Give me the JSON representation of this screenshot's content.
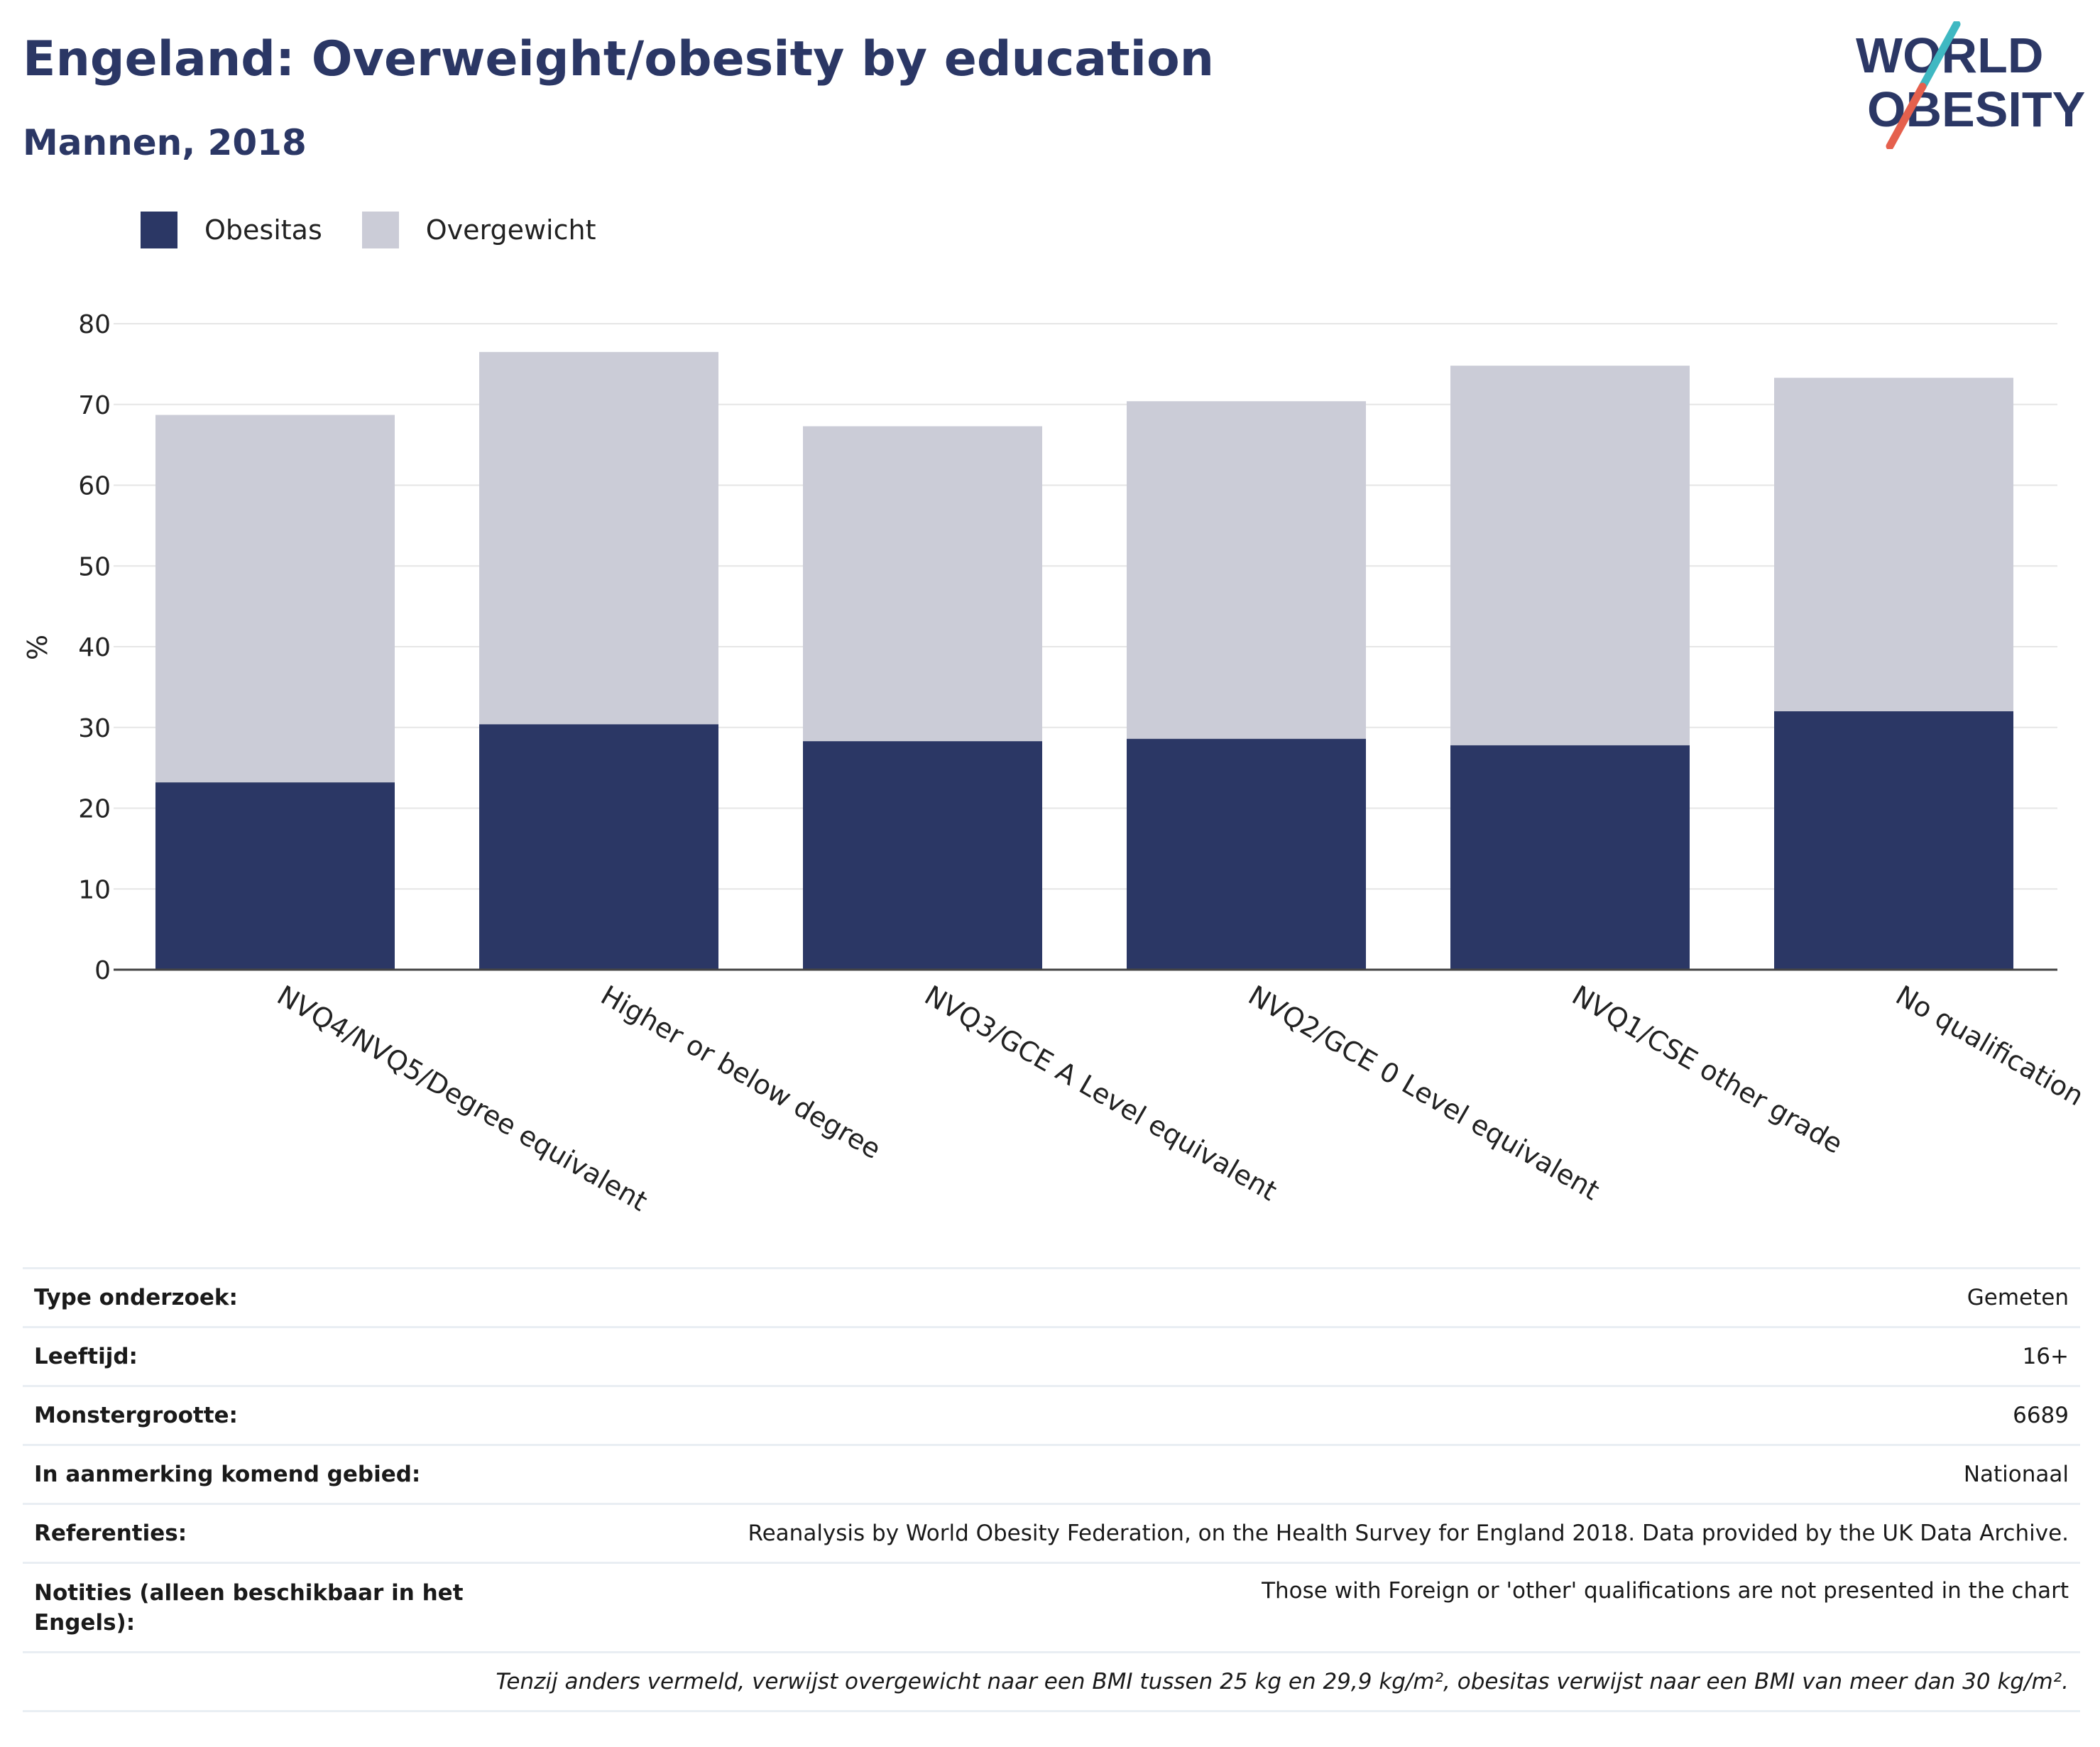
{
  "header": {
    "title": "Engeland: Overweight/obesity by education",
    "subtitle": "Mannen, 2018"
  },
  "logo": {
    "line1": "WORLD",
    "line2": "OBESITY",
    "colors": {
      "text": "#2b3765",
      "slash_top": "#3fb8c2",
      "slash_bottom": "#e5604d"
    }
  },
  "colors": {
    "obesitas": "#2b3765",
    "overgewicht": "#cbccd7",
    "gridline": "#e6e6e6",
    "axis": "#444444"
  },
  "chart_data": {
    "type": "bar",
    "stacked": true,
    "title": "",
    "xlabel": "",
    "ylabel": "%",
    "ylim": [
      0,
      80
    ],
    "yticks": [
      0,
      10,
      20,
      30,
      40,
      50,
      60,
      70,
      80
    ],
    "grid": true,
    "legend_position": "top-left",
    "categories": [
      "NVQ4/NVQ5/Degree equivalent",
      "Higher or below degree",
      "NVQ3/GCE A Level equivalent",
      "NVQ2/GCE 0 Level equivalent",
      "NVQ1/CSE other grade",
      "No qualification"
    ],
    "series": [
      {
        "name": "Obesitas",
        "values": [
          23.2,
          30.4,
          28.3,
          28.6,
          27.8,
          32.0
        ]
      },
      {
        "name": "Overgewicht",
        "values": [
          45.5,
          46.1,
          39.0,
          41.8,
          47.0,
          41.3
        ]
      }
    ]
  },
  "info": {
    "rows": [
      {
        "key": "Type onderzoek:",
        "value": "Gemeten"
      },
      {
        "key": "Leeftijd:",
        "value": "16+"
      },
      {
        "key": "Monstergrootte:",
        "value": "6689"
      },
      {
        "key": "In aanmerking komend gebied:",
        "value": "Nationaal"
      },
      {
        "key": "Referenties:",
        "value": "Reanalysis by World Obesity Federation, on the Health Survey for England 2018. Data provided by the UK Data Archive."
      },
      {
        "key": "Notities (alleen beschikbaar in het Engels):",
        "value": "Those with Foreign or 'other' qualifications are not presented in the chart"
      }
    ],
    "footnote": "Tenzij anders vermeld, verwijst overgewicht naar een BMI tussen 25 kg en 29,9 kg/m², obesitas verwijst naar een BMI van meer dan 30 kg/m²."
  }
}
